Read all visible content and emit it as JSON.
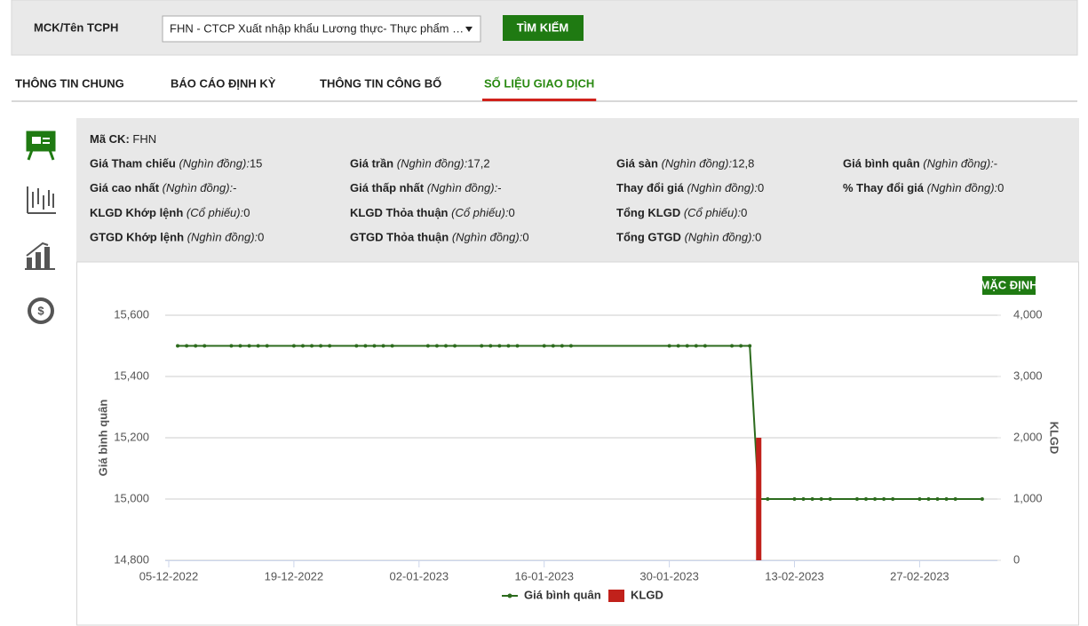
{
  "search": {
    "label": "MCK/Tên TCPH",
    "selected": "FHN - CTCP Xuất nhập khẩu Lương thực- Thực phẩm …",
    "button": "TÌM KIẾM"
  },
  "tabs": {
    "items": [
      "THÔNG TIN CHUNG",
      "BÁO CÁO ĐỊNH KỲ",
      "THÔNG TIN CÔNG BỐ",
      "SỐ LIỆU GIAO DỊCH"
    ],
    "active": 3
  },
  "info": {
    "rows": [
      [
        {
          "label": "Mã CK:",
          "value": "FHN"
        }
      ],
      [
        {
          "label": "Giá Tham chiếu",
          "unit": "(Nghìn đồng):",
          "value": "15"
        },
        {
          "label": "Giá trần",
          "unit": "(Nghìn đồng):",
          "value": "17,2"
        },
        {
          "label": "Giá sàn",
          "unit": "(Nghìn đồng):",
          "value": "12,8"
        },
        {
          "label": "Giá bình quân",
          "unit": "(Nghìn đồng):",
          "value": "-"
        }
      ],
      [
        {
          "label": "Giá cao nhất",
          "unit": "(Nghìn đồng):",
          "value": "-"
        },
        {
          "label": "Giá thấp nhất",
          "unit": "(Nghìn đồng):",
          "value": "-"
        },
        {
          "label": "Thay đổi giá",
          "unit": "(Nghìn đồng):",
          "value": "0"
        },
        {
          "label": "% Thay đổi giá",
          "unit": "(Nghìn đồng):",
          "value": "0"
        }
      ],
      [
        {
          "label": "KLGD Khớp lệnh",
          "unit": "(Cổ phiếu):",
          "value": "0"
        },
        {
          "label": "KLGD Thỏa thuận",
          "unit": "(Cổ phiếu):",
          "value": "0"
        },
        {
          "label": "Tổng KLGD",
          "unit": "(Cổ phiếu):",
          "value": "0"
        }
      ],
      [
        {
          "label": "GTGD Khớp lệnh",
          "unit": "(Nghìn đồng):",
          "value": "0"
        },
        {
          "label": "GTGD Thỏa thuận",
          "unit": "(Nghìn đồng):",
          "value": "0"
        },
        {
          "label": "Tổng GTGD",
          "unit": "(Nghìn đồng):",
          "value": "0"
        }
      ]
    ]
  },
  "chart_data": {
    "type": "line",
    "reset_button": "MẶC ĐỊNH",
    "x": [
      "06-12-2022",
      "07-12-2022",
      "08-12-2022",
      "09-12-2022",
      "12-12-2022",
      "13-12-2022",
      "14-12-2022",
      "15-12-2022",
      "16-12-2022",
      "19-12-2022",
      "20-12-2022",
      "21-12-2022",
      "22-12-2022",
      "23-12-2022",
      "26-12-2022",
      "27-12-2022",
      "28-12-2022",
      "29-12-2022",
      "30-12-2022",
      "03-01-2023",
      "04-01-2023",
      "05-01-2023",
      "06-01-2023",
      "09-01-2023",
      "10-01-2023",
      "11-01-2023",
      "12-01-2023",
      "13-01-2023",
      "16-01-2023",
      "17-01-2023",
      "18-01-2023",
      "19-01-2023",
      "30-01-2023",
      "31-01-2023",
      "01-02-2023",
      "02-02-2023",
      "03-02-2023",
      "06-02-2023",
      "07-02-2023",
      "08-02-2023",
      "09-02-2023",
      "10-02-2023",
      "13-02-2023",
      "14-02-2023",
      "15-02-2023",
      "16-02-2023",
      "17-02-2023",
      "20-02-2023",
      "21-02-2023",
      "22-02-2023",
      "23-02-2023",
      "24-02-2023",
      "27-02-2023",
      "28-02-2023",
      "01-03-2023",
      "02-03-2023",
      "03-03-2023",
      "06-03-2023"
    ],
    "series": [
      {
        "name": "Giá bình quân",
        "type": "line",
        "color": "#2c6b1d",
        "values": [
          15500,
          15500,
          15500,
          15500,
          15500,
          15500,
          15500,
          15500,
          15500,
          15500,
          15500,
          15500,
          15500,
          15500,
          15500,
          15500,
          15500,
          15500,
          15500,
          15500,
          15500,
          15500,
          15500,
          15500,
          15500,
          15500,
          15500,
          15500,
          15500,
          15500,
          15500,
          15500,
          15500,
          15500,
          15500,
          15500,
          15500,
          15500,
          15500,
          15500,
          15000,
          15000,
          15000,
          15000,
          15000,
          15000,
          15000,
          15000,
          15000,
          15000,
          15000,
          15000,
          15000,
          15000,
          15000,
          15000,
          15000,
          15000
        ]
      },
      {
        "name": "KLGD",
        "type": "bar",
        "axis": "y2",
        "color": "#c1211b",
        "values": [
          0,
          0,
          0,
          0,
          0,
          0,
          0,
          0,
          0,
          0,
          0,
          0,
          0,
          0,
          0,
          0,
          0,
          0,
          0,
          0,
          0,
          0,
          0,
          0,
          0,
          0,
          0,
          0,
          0,
          0,
          0,
          0,
          0,
          0,
          0,
          0,
          0,
          0,
          0,
          0,
          2000,
          0,
          0,
          0,
          0,
          0,
          0,
          0,
          0,
          0,
          0,
          0,
          0,
          0,
          0,
          0,
          0,
          0
        ]
      }
    ],
    "xlim": [
      "05-12-2022",
      "08-03-2023"
    ],
    "xticks": [
      "05-12-2022",
      "19-12-2022",
      "02-01-2023",
      "16-01-2023",
      "30-01-2023",
      "13-02-2023",
      "27-02-2023"
    ],
    "y_label": "Giá bình quân",
    "y2_label": "KLGD",
    "ylim": [
      14800,
      15600
    ],
    "yticks": [
      {
        "value": 14800,
        "label": "14,800"
      },
      {
        "value": 15000,
        "label": "15,000"
      },
      {
        "value": 15200,
        "label": "15,200"
      },
      {
        "value": 15400,
        "label": "15,400"
      },
      {
        "value": 15600,
        "label": "15,600"
      }
    ],
    "y2lim": [
      0,
      4000
    ],
    "y2ticks": [
      0,
      {
        "value": 1000,
        "label": "1,000"
      },
      {
        "value": 2000,
        "label": "2,000"
      },
      {
        "value": 3000,
        "label": "3,000"
      },
      {
        "value": 4000,
        "label": "4,000"
      }
    ],
    "grid": true,
    "legend": "bottom"
  }
}
